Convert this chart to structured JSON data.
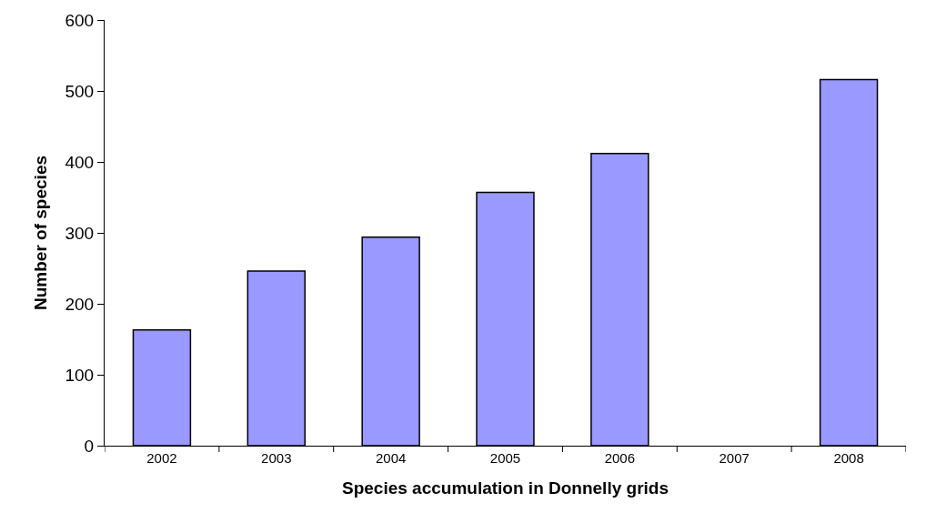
{
  "chart_data": {
    "type": "bar",
    "xlabel": "Species accumulation in Donnelly grids",
    "ylabel": "Number of species",
    "categories": [
      "2002",
      "2003",
      "2004",
      "2005",
      "2006",
      "2007",
      "2008"
    ],
    "values": [
      163,
      246,
      294,
      357,
      412,
      null,
      516
    ],
    "color": "#9999ff",
    "ylim": [
      0,
      600
    ],
    "yticks": [
      0,
      100,
      200,
      300,
      400,
      500,
      600
    ],
    "grid": false,
    "legend": false
  }
}
